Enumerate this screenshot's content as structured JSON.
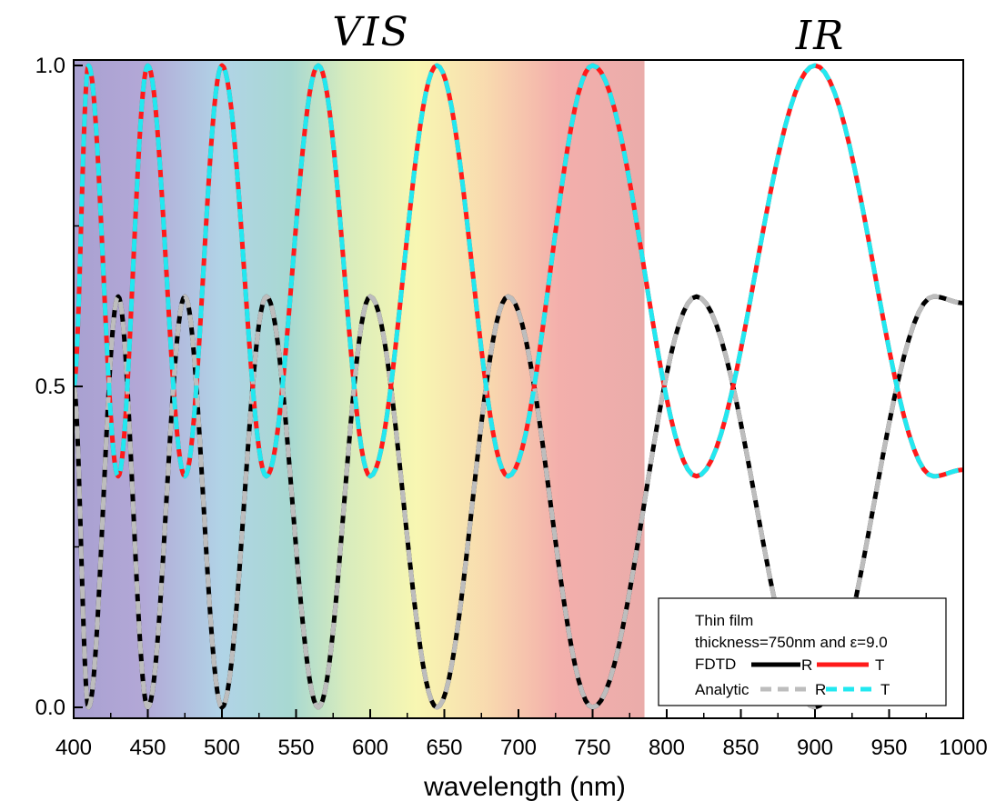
{
  "chart_data": {
    "type": "line",
    "title": "",
    "xlabel": "wavelength (nm)",
    "ylabel": "",
    "xlim": [
      400,
      1000
    ],
    "ylim": [
      0.0,
      1.0
    ],
    "xticks": [
      400,
      450,
      500,
      550,
      600,
      650,
      700,
      750,
      800,
      850,
      900,
      950,
      1000
    ],
    "yticks": [
      "0.0",
      "0.5",
      "1.0"
    ],
    "grid": false,
    "region_labels": [
      "VIS",
      "IR"
    ],
    "visible_spectrum_band": [
      400,
      785
    ],
    "legend": {
      "placement": "bottom-right",
      "title_lines": [
        "Thin film",
        "thickness=750nm and ε=9.0"
      ],
      "rows": [
        {
          "label": "FDTD",
          "r_label": "R",
          "t_label": "T"
        },
        {
          "label": "Analytic",
          "r_label": "R",
          "t_label": "T"
        }
      ]
    },
    "film": {
      "thickness_nm": 750,
      "epsilon": 9.0
    },
    "series": [
      {
        "name": "FDTD R",
        "color": "#000000",
        "style": "solid"
      },
      {
        "name": "FDTD T",
        "color": "#ff1a1a",
        "style": "solid"
      },
      {
        "name": "Analytic R",
        "color": "#bdbdbd",
        "style": "dashed"
      },
      {
        "name": "Analytic T",
        "color": "#22e8f0",
        "style": "dashed"
      }
    ],
    "sample_points": {
      "T": {
        "x": [
          400,
          410,
          430,
          450,
          475,
          500,
          530,
          565,
          600,
          645,
          693,
          750,
          820,
          900,
          980,
          1000
        ],
        "y": [
          0.5,
          1.0,
          0.36,
          1.0,
          0.36,
          1.0,
          0.36,
          1.0,
          0.36,
          1.0,
          0.36,
          1.0,
          0.36,
          1.0,
          0.36,
          0.37
        ]
      },
      "R": {
        "x": [
          400,
          410,
          430,
          450,
          475,
          500,
          530,
          565,
          600,
          645,
          693,
          750,
          820,
          900,
          980,
          1000
        ],
        "y": [
          0.5,
          0.0,
          0.64,
          0.0,
          0.64,
          0.0,
          0.64,
          0.0,
          0.64,
          0.0,
          0.64,
          0.0,
          0.64,
          0.0,
          0.64,
          0.63
        ]
      }
    }
  },
  "colors": {
    "fdtd_r": "#000000",
    "fdtd_t": "#ff1a1a",
    "analytic_r": "#bdbdbd",
    "analytic_t": "#22e8f0"
  }
}
